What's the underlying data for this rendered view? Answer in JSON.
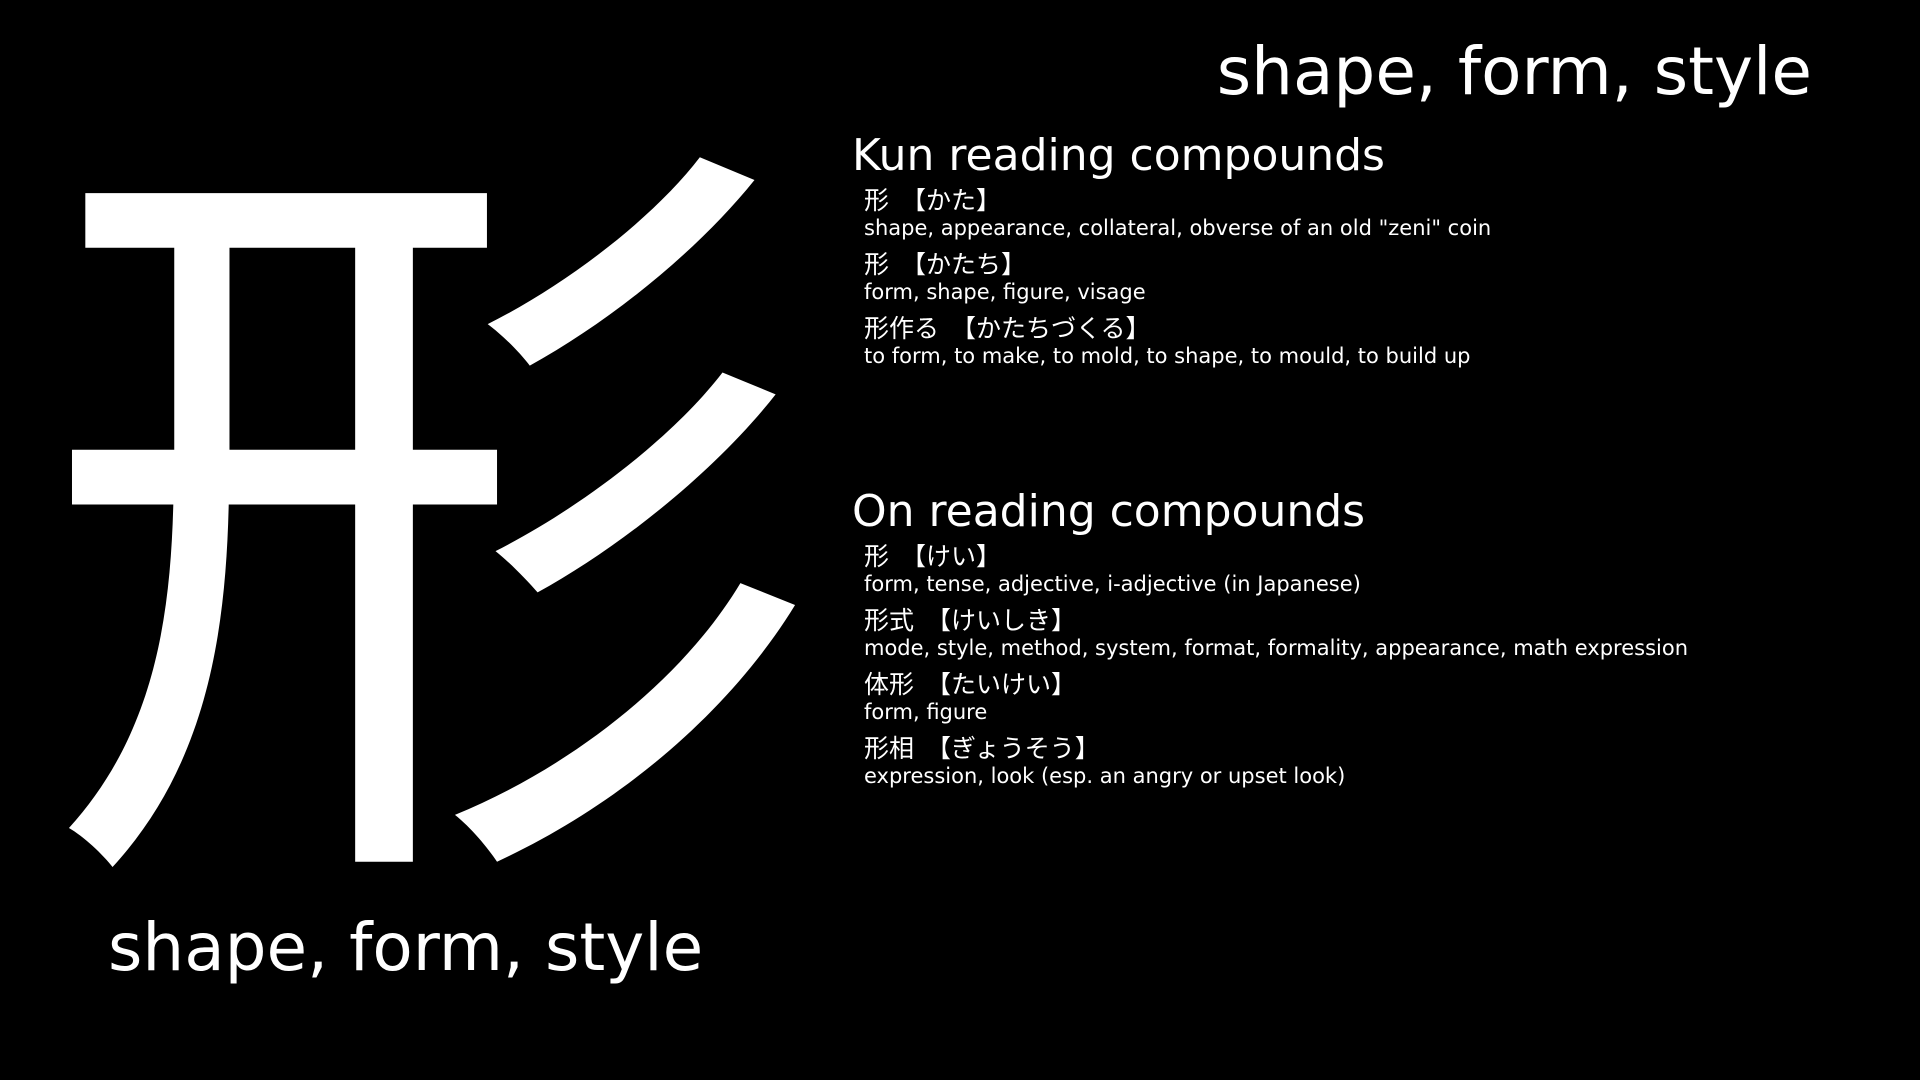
{
  "kanji": "形",
  "meaning": "shape, form, style",
  "kun_section": {
    "heading": "Kun reading compounds",
    "entries": [
      {
        "word": "形",
        "reading": "【かた】",
        "gloss": "shape, appearance, collateral, obverse of an old \"zeni\" coin"
      },
      {
        "word": "形",
        "reading": "【かたち】",
        "gloss": "form, shape, figure, visage"
      },
      {
        "word": "形作る",
        "reading": "【かたちづくる】",
        "gloss": "to form, to make, to mold, to shape, to mould, to build up"
      }
    ]
  },
  "on_section": {
    "heading": "On reading compounds",
    "entries": [
      {
        "word": "形",
        "reading": "【けい】",
        "gloss": "form, tense, adjective, i-adjective (in Japanese)"
      },
      {
        "word": "形式",
        "reading": "【けいしき】",
        "gloss": "mode, style, method, system, format, formality, appearance, math expression"
      },
      {
        "word": "体形",
        "reading": "【たいけい】",
        "gloss": "form, figure"
      },
      {
        "word": "形相",
        "reading": "【ぎょうそう】",
        "gloss": "expression, look (esp. an angry or upset look)"
      }
    ]
  }
}
